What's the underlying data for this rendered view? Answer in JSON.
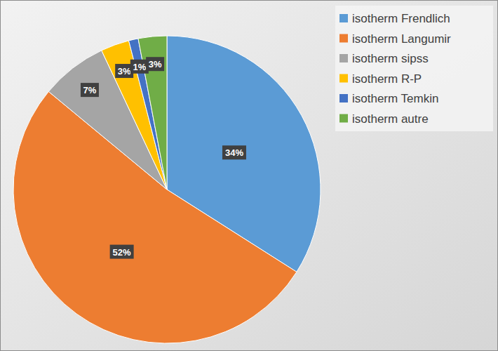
{
  "chart_data": {
    "type": "pie",
    "categories": [
      "isotherm Frendlich",
      "isotherm Langumir",
      "isotherm sipss",
      "isotherm R-P",
      "isotherm Temkin",
      "isotherm autre"
    ],
    "values": [
      34,
      52,
      7,
      3,
      1,
      3
    ],
    "value_labels": [
      "34%",
      "52%",
      "7%",
      "3%",
      "1%",
      "3%"
    ],
    "colors": [
      "#5b9bd5",
      "#ed7d31",
      "#a5a5a5",
      "#ffc000",
      "#4472c4",
      "#70ad47"
    ],
    "data_labels": true,
    "legend": "top-right"
  }
}
